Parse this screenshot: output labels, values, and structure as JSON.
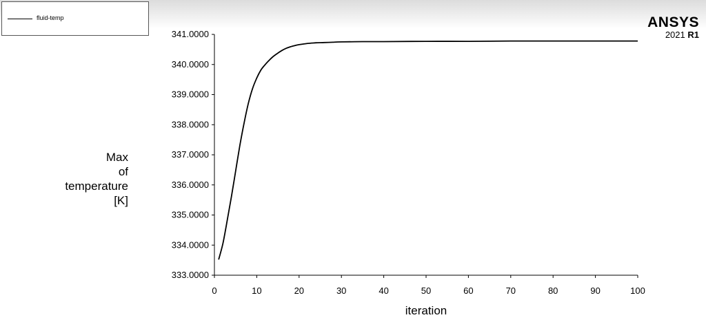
{
  "legend": {
    "entries": [
      {
        "label": "fluid-temp",
        "color": "#000000"
      }
    ]
  },
  "brand": {
    "name": "ANSYS",
    "year": "2021",
    "release": "R1"
  },
  "chart_data": {
    "type": "line",
    "xlabel": "iteration",
    "ylabel_lines": [
      "Max",
      "of",
      "temperature",
      "[K]"
    ],
    "xlim": [
      0,
      100
    ],
    "ylim": [
      333,
      341
    ],
    "x_ticks": [
      0,
      10,
      20,
      30,
      40,
      50,
      60,
      70,
      80,
      90,
      100
    ],
    "y_ticks": [
      333,
      334,
      335,
      336,
      337,
      338,
      339,
      340,
      341
    ],
    "y_tick_labels": [
      "333.0000",
      "334.0000",
      "335.0000",
      "336.0000",
      "337.0000",
      "338.0000",
      "339.0000",
      "340.0000",
      "341.0000"
    ],
    "grid": false,
    "series": [
      {
        "name": "fluid-temp",
        "color": "#000000",
        "x": [
          1,
          2,
          3,
          4,
          5,
          6,
          7,
          8,
          9,
          10,
          11,
          12,
          13,
          14,
          15,
          16,
          17,
          18,
          19,
          20,
          22,
          24,
          26,
          28,
          30,
          35,
          40,
          50,
          60,
          70,
          80,
          90,
          100
        ],
        "y": [
          333.52,
          334.05,
          334.8,
          335.6,
          336.45,
          337.3,
          338.05,
          338.7,
          339.2,
          339.55,
          339.82,
          340.0,
          340.15,
          340.28,
          340.38,
          340.47,
          340.54,
          340.59,
          340.63,
          340.66,
          340.7,
          340.72,
          340.73,
          340.74,
          340.75,
          340.76,
          340.76,
          340.77,
          340.77,
          340.78,
          340.78,
          340.78,
          340.78
        ]
      }
    ]
  }
}
